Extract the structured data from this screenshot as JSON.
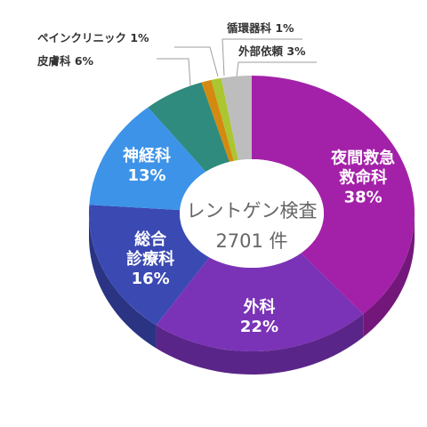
{
  "chart_data": {
    "type": "pie",
    "center": {
      "title": "レントゲン検査",
      "count": "2701 件"
    },
    "categories": [
      "夜間救急救命科",
      "外科",
      "総合診療科",
      "神経科",
      "皮膚科",
      "ペインクリニック",
      "循環器科",
      "外部依頼"
    ],
    "values": [
      38,
      22,
      16,
      13,
      6,
      1,
      1,
      3
    ],
    "labels": [
      {
        "lines": [
          "夜間救急",
          "救命科",
          "38%"
        ],
        "placement": "inside"
      },
      {
        "lines": [
          "外科",
          "22%"
        ],
        "placement": "inside"
      },
      {
        "lines": [
          "総合",
          "診療科",
          "16%"
        ],
        "placement": "inside"
      },
      {
        "lines": [
          "神経科",
          "13%"
        ],
        "placement": "inside"
      },
      {
        "lines": [
          "皮膚科 6%"
        ],
        "placement": "outside-left"
      },
      {
        "lines": [
          "ペインクリニック 1%"
        ],
        "placement": "outside-left"
      },
      {
        "lines": [
          "循環器科 1%"
        ],
        "placement": "outside-right"
      },
      {
        "lines": [
          "外部依頼 3%"
        ],
        "placement": "outside-right"
      }
    ],
    "colors": [
      "#a321a8",
      "#7a33b6",
      "#3b49b3",
      "#3d93e8",
      "#2e8b7e",
      "#d48a10",
      "#aac630",
      "#bdbdbd"
    ],
    "side_colors": [
      "#74177a",
      "#5a2588",
      "#2a3482",
      "#2b6aab",
      "#20645b",
      "#9a640b",
      "#7c9123",
      "#8c8c8c"
    ],
    "legend": "none"
  }
}
